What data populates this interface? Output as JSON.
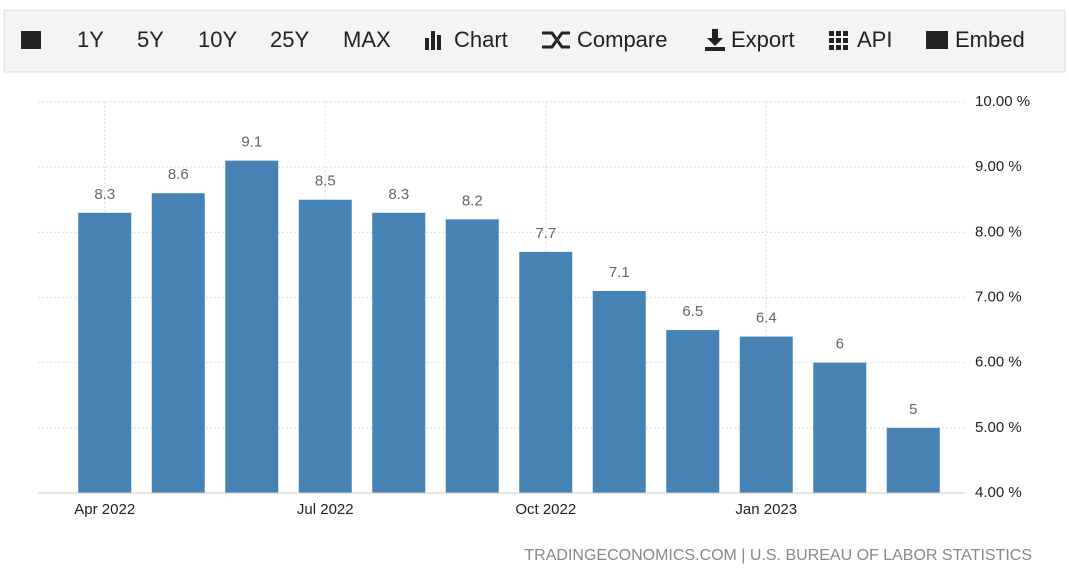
{
  "toolbar": {
    "items": [
      "1Y",
      "5Y",
      "10Y",
      "25Y",
      "MAX",
      "Chart",
      "Compare",
      "Export",
      "API",
      "Embed"
    ]
  },
  "chart_data": {
    "type": "bar",
    "categories": [
      "Apr 2022",
      null,
      null,
      "Jul 2022",
      null,
      null,
      "Oct 2022",
      null,
      null,
      "Jan 2023",
      null,
      null
    ],
    "values": [
      8.3,
      8.6,
      9.1,
      8.5,
      8.3,
      8.2,
      7.7,
      7.1,
      6.5,
      6.4,
      6,
      5
    ],
    "color": "#4682b4",
    "ylim": [
      4,
      10
    ],
    "yticks": [
      {
        "value": 4,
        "label": "4.00 %"
      },
      {
        "value": 5,
        "label": "5.00 %"
      },
      {
        "value": 6,
        "label": "6.00 %"
      },
      {
        "value": 7,
        "label": "7.00 %"
      },
      {
        "value": 8,
        "label": "8.00 %"
      },
      {
        "value": 9,
        "label": "9.00 %"
      },
      {
        "value": 10,
        "label": "10.00 %"
      }
    ],
    "grid": true,
    "source": "TRADINGECONOMICS.COM | U.S. BUREAU OF LABOR STATISTICS"
  }
}
